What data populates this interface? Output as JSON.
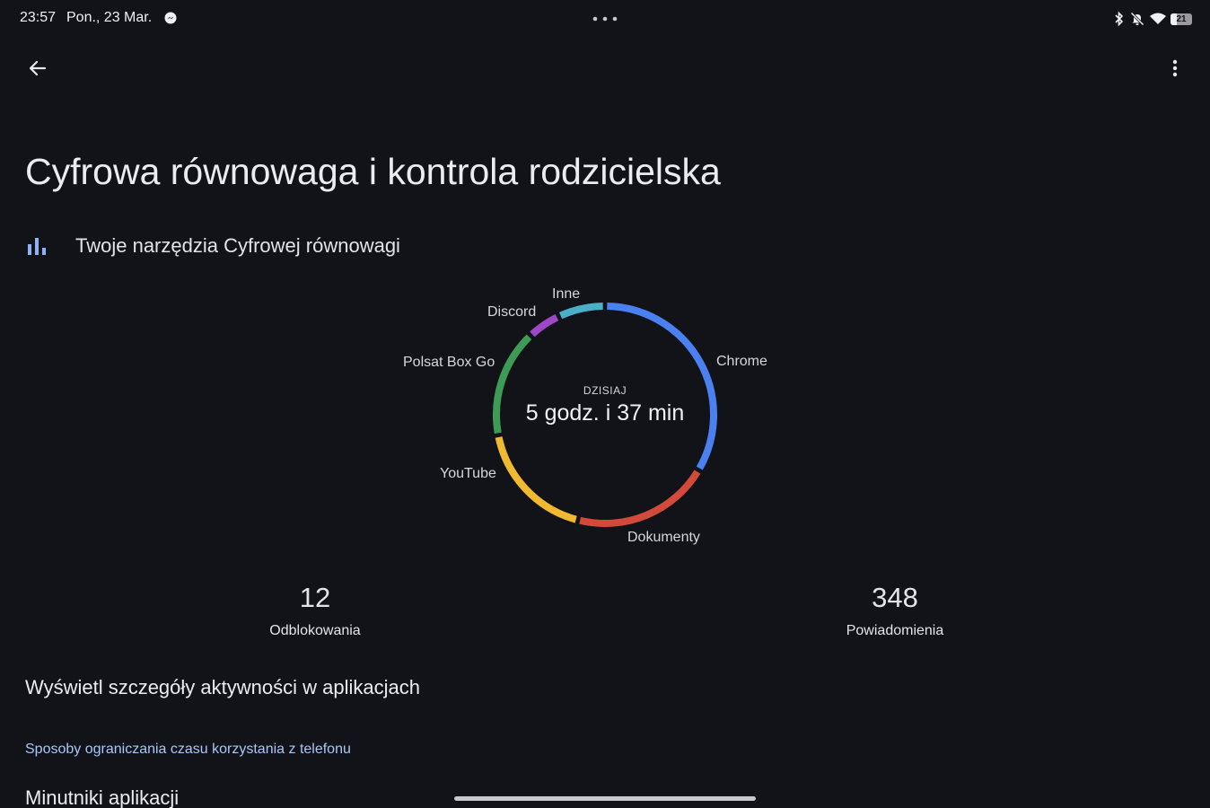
{
  "status_bar": {
    "time": "23:57",
    "date": "Pon., 23 Mar.",
    "battery_level": "21",
    "icons": [
      "messenger-icon",
      "bluetooth-icon",
      "mute-icon",
      "wifi-icon",
      "battery-icon"
    ]
  },
  "toolbar": {
    "back_icon": "arrow-back-icon",
    "more_icon": "more-vert-icon"
  },
  "page": {
    "title": "Cyfrowa równowaga i kontrola rodzicielska"
  },
  "section": {
    "icon": "bar-chart-icon",
    "label": "Twoje narzędzia Cyfrowej równowagi"
  },
  "usage_chart": {
    "caption": "DZISIAJ",
    "total": "5 godz. i 37 min",
    "segments": [
      {
        "label": "Chrome",
        "share": 0.335,
        "color": "#4a80f0"
      },
      {
        "label": "Dokumenty",
        "share": 0.205,
        "color": "#d44a3a"
      },
      {
        "label": "YouTube",
        "share": 0.18,
        "color": "#f0b930"
      },
      {
        "label": "Polsat Box Go",
        "share": 0.16,
        "color": "#3e9b56"
      },
      {
        "label": "Discord",
        "share": 0.05,
        "color": "#a047c8"
      },
      {
        "label": "Inne",
        "share": 0.07,
        "color": "#4ab0c8"
      }
    ]
  },
  "stats": {
    "unlocks": {
      "value": "12",
      "label": "Odblokowania"
    },
    "notifications": {
      "value": "348",
      "label": "Powiadomienia"
    }
  },
  "details_link": "Wyświetl szczegóły aktywności w aplikacjach",
  "subheader": "Sposoby ograniczania czasu korzystania z telefonu",
  "app_timers": "Minutniki aplikacji"
}
